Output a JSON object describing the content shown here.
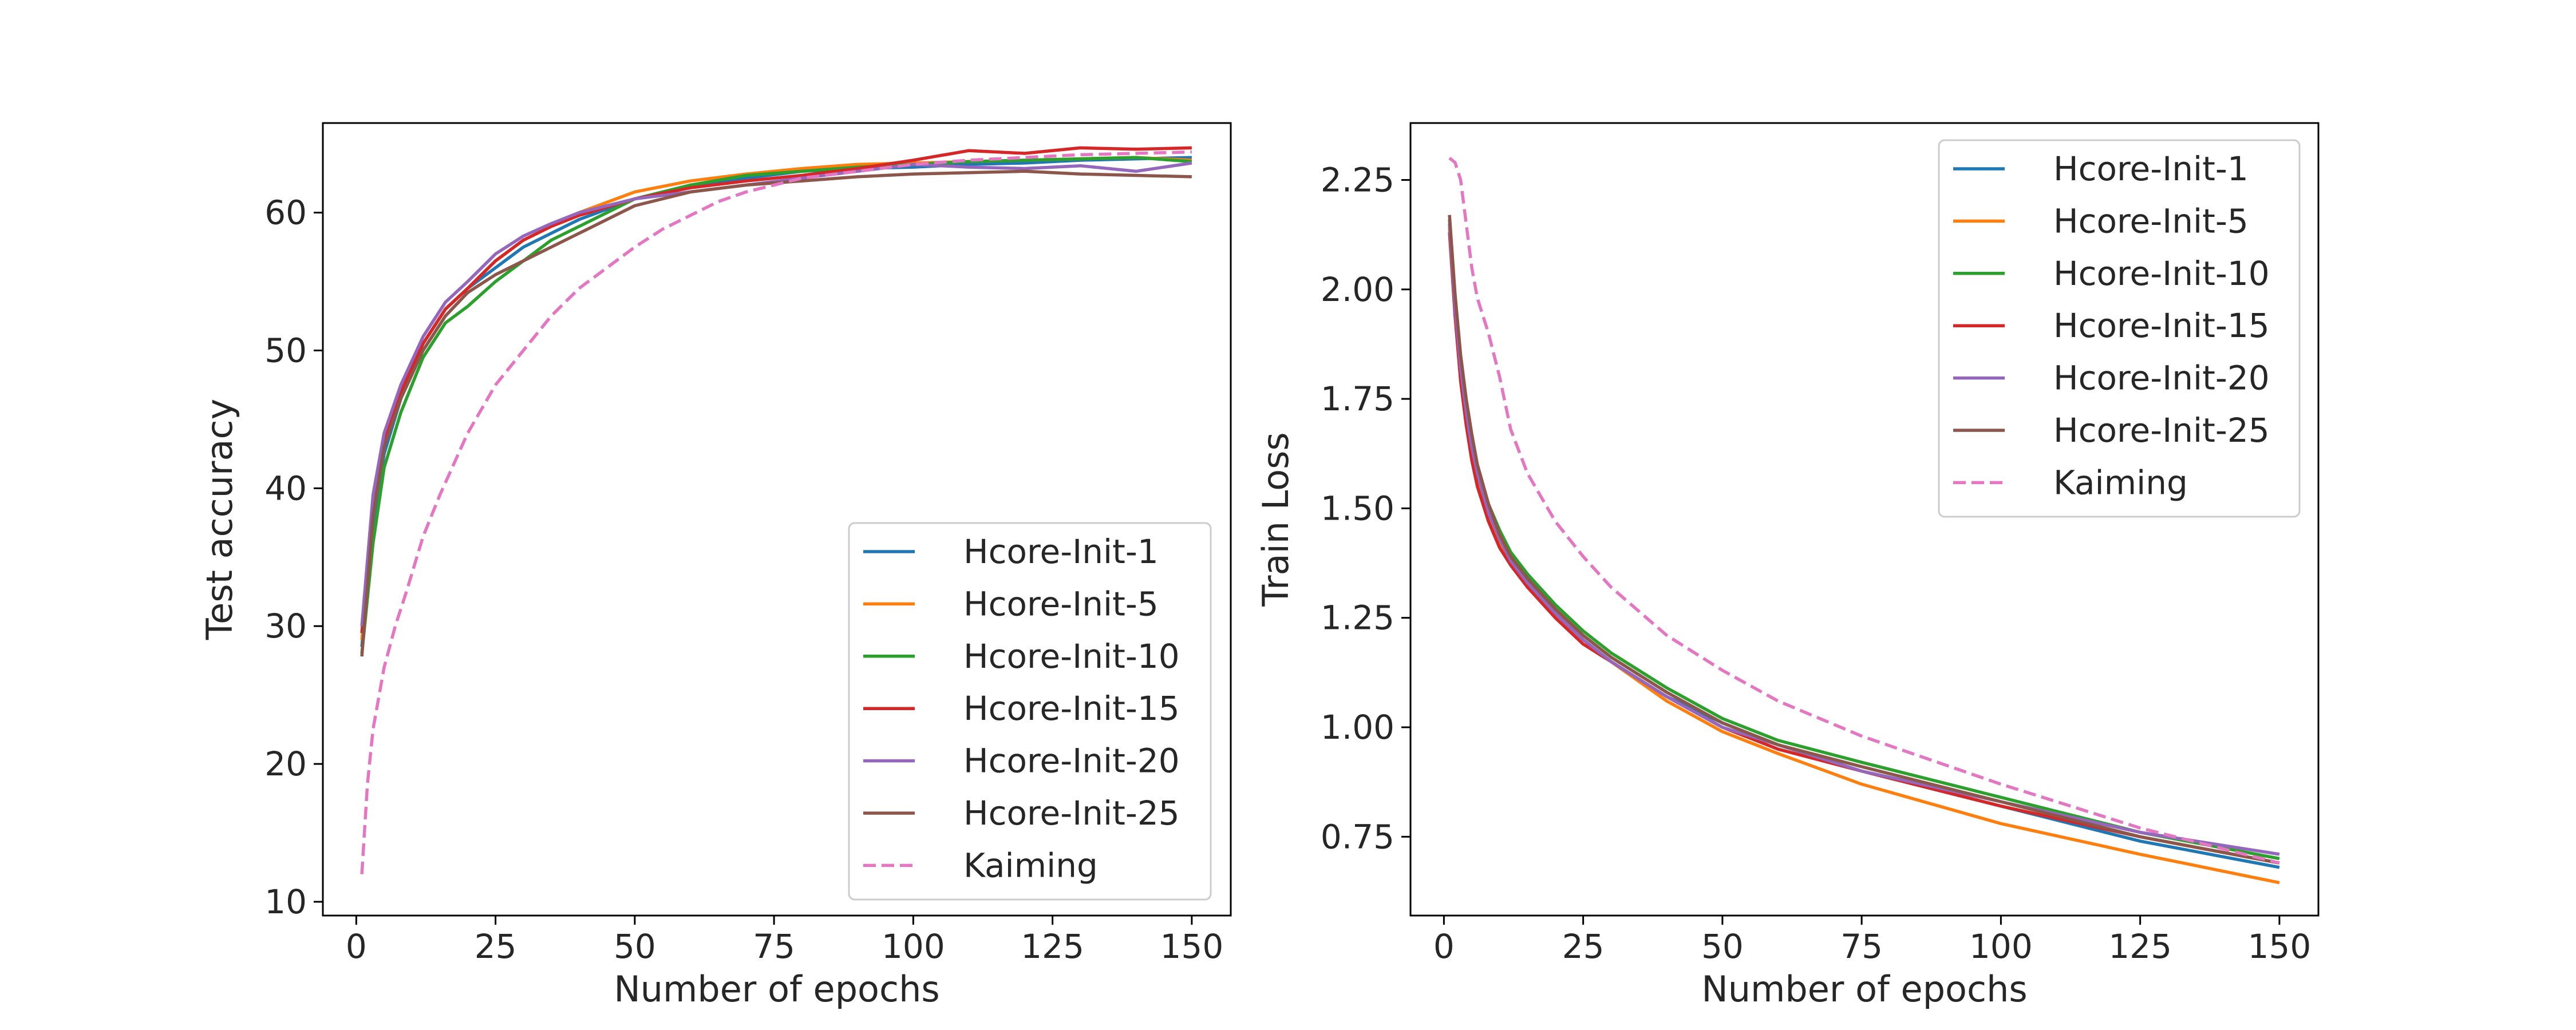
{
  "chart_data": [
    {
      "type": "line",
      "xlabel": "Number of epochs",
      "ylabel": "Test accuracy",
      "xlim": [
        -6,
        157
      ],
      "ylim": [
        9,
        66.5
      ],
      "xticks": [
        0,
        25,
        50,
        75,
        100,
        125,
        150
      ],
      "yticks": [
        10,
        20,
        30,
        40,
        50,
        60
      ],
      "legend_position": "lower-right",
      "series": [
        {
          "name": "Hcore-Init-1",
          "color": "#1f77b4",
          "dash": false,
          "x": [
            1,
            3,
            5,
            8,
            12,
            16,
            20,
            25,
            30,
            35,
            40,
            50,
            60,
            70,
            80,
            90,
            100,
            110,
            120,
            130,
            140,
            150
          ],
          "y": [
            28.5,
            37.5,
            42.5,
            46.5,
            50.5,
            53,
            54.5,
            56,
            57.5,
            58.5,
            59.5,
            61,
            62,
            62.5,
            63,
            63.2,
            63.3,
            63.5,
            63.6,
            63.8,
            63.9,
            64
          ]
        },
        {
          "name": "Hcore-Init-5",
          "color": "#ff7f0e",
          "dash": false,
          "x": [
            1,
            3,
            5,
            8,
            12,
            16,
            20,
            25,
            30,
            35,
            40,
            50,
            60,
            70,
            80,
            90,
            100,
            110,
            120,
            130,
            140,
            150
          ],
          "y": [
            29,
            38,
            43,
            47,
            50.5,
            53,
            54.5,
            56.5,
            58,
            59,
            60,
            61.5,
            62.3,
            62.8,
            63.2,
            63.5,
            63.6,
            63.7,
            63.8,
            63.9,
            64,
            63.8
          ]
        },
        {
          "name": "Hcore-Init-10",
          "color": "#2ca02c",
          "dash": false,
          "x": [
            1,
            3,
            5,
            8,
            12,
            16,
            20,
            25,
            30,
            35,
            40,
            50,
            60,
            70,
            80,
            90,
            100,
            110,
            120,
            130,
            140,
            150
          ],
          "y": [
            28,
            36,
            41.5,
            45.5,
            49.5,
            52,
            53.2,
            55,
            56.5,
            58,
            59,
            61,
            62,
            62.7,
            63,
            63.3,
            63.5,
            63.7,
            63.8,
            63.9,
            64,
            63.7
          ]
        },
        {
          "name": "Hcore-Init-15",
          "color": "#d62728",
          "dash": false,
          "x": [
            1,
            3,
            5,
            8,
            12,
            16,
            20,
            25,
            30,
            35,
            40,
            50,
            60,
            70,
            80,
            90,
            100,
            110,
            120,
            130,
            140,
            150
          ],
          "y": [
            29.5,
            39,
            43.5,
            47,
            50.5,
            53,
            54.5,
            56.5,
            58,
            59,
            59.8,
            61,
            61.8,
            62.3,
            62.7,
            63.2,
            63.8,
            64.5,
            64.3,
            64.7,
            64.6,
            64.7
          ]
        },
        {
          "name": "Hcore-Init-20",
          "color": "#9467bd",
          "dash": false,
          "x": [
            1,
            3,
            5,
            8,
            12,
            16,
            20,
            25,
            30,
            35,
            40,
            50,
            60,
            70,
            80,
            90,
            100,
            110,
            120,
            130,
            140,
            150
          ],
          "y": [
            30,
            39.5,
            44,
            47.5,
            51,
            53.5,
            55,
            57,
            58.3,
            59.2,
            60,
            61,
            61.5,
            62,
            62.5,
            63,
            63.5,
            63.3,
            63.2,
            63.4,
            63,
            63.6
          ]
        },
        {
          "name": "Hcore-Init-25",
          "color": "#8c564b",
          "dash": false,
          "x": [
            1,
            3,
            5,
            8,
            12,
            16,
            20,
            25,
            30,
            35,
            40,
            50,
            60,
            70,
            80,
            90,
            100,
            110,
            120,
            130,
            140,
            150
          ],
          "y": [
            27.8,
            38,
            43,
            46.5,
            50,
            52.5,
            54.2,
            55.5,
            56.5,
            57.5,
            58.5,
            60.5,
            61.5,
            62,
            62.3,
            62.6,
            62.8,
            62.9,
            63,
            62.8,
            62.7,
            62.6
          ]
        },
        {
          "name": "Kaiming",
          "color": "#e377c2",
          "dash": true,
          "x": [
            1,
            2,
            3,
            5,
            7,
            9,
            12,
            15,
            20,
            25,
            30,
            35,
            40,
            45,
            50,
            55,
            60,
            65,
            70,
            75,
            80,
            90,
            100,
            110,
            120,
            130,
            140,
            150
          ],
          "y": [
            12,
            18.5,
            22.5,
            27,
            30,
            32.5,
            36.5,
            39.5,
            44,
            47.5,
            50,
            52.5,
            54.5,
            56,
            57.5,
            58.8,
            59.8,
            60.8,
            61.5,
            62,
            62.5,
            63,
            63.5,
            63.8,
            64,
            64.2,
            64.3,
            64.4
          ]
        }
      ]
    },
    {
      "type": "line",
      "xlabel": "Number of epochs",
      "ylabel": "Train Loss",
      "xlim": [
        -6,
        157
      ],
      "ylim": [
        0.57,
        2.38
      ],
      "xticks": [
        0,
        25,
        50,
        75,
        100,
        125,
        150
      ],
      "yticks": [
        "0.75",
        "1.00",
        "1.25",
        "1.50",
        "1.75",
        "2.00",
        "2.25"
      ],
      "legend_position": "upper-right",
      "series": [
        {
          "name": "Hcore-Init-1",
          "color": "#1f77b4",
          "dash": false,
          "x": [
            1,
            2,
            3,
            4,
            5,
            6,
            8,
            10,
            12,
            15,
            20,
            25,
            30,
            40,
            50,
            60,
            75,
            100,
            125,
            150
          ],
          "y": [
            2.15,
            1.95,
            1.8,
            1.7,
            1.62,
            1.56,
            1.48,
            1.42,
            1.38,
            1.33,
            1.26,
            1.2,
            1.15,
            1.07,
            1.01,
            0.96,
            0.9,
            0.82,
            0.74,
            0.68
          ]
        },
        {
          "name": "Hcore-Init-5",
          "color": "#ff7f0e",
          "dash": false,
          "x": [
            1,
            2,
            3,
            4,
            5,
            6,
            8,
            10,
            12,
            15,
            20,
            25,
            30,
            40,
            50,
            60,
            75,
            100,
            125,
            150
          ],
          "y": [
            2.14,
            1.95,
            1.81,
            1.71,
            1.63,
            1.57,
            1.48,
            1.42,
            1.38,
            1.33,
            1.26,
            1.2,
            1.15,
            1.06,
            0.99,
            0.94,
            0.87,
            0.78,
            0.71,
            0.645
          ]
        },
        {
          "name": "Hcore-Init-10",
          "color": "#2ca02c",
          "dash": false,
          "x": [
            1,
            2,
            3,
            4,
            5,
            6,
            8,
            10,
            12,
            15,
            20,
            25,
            30,
            40,
            50,
            60,
            75,
            100,
            125,
            150
          ],
          "y": [
            2.16,
            1.98,
            1.84,
            1.74,
            1.66,
            1.6,
            1.51,
            1.45,
            1.4,
            1.35,
            1.28,
            1.22,
            1.17,
            1.09,
            1.02,
            0.97,
            0.92,
            0.84,
            0.76,
            0.7
          ]
        },
        {
          "name": "Hcore-Init-15",
          "color": "#d62728",
          "dash": false,
          "x": [
            1,
            2,
            3,
            4,
            5,
            6,
            8,
            10,
            12,
            15,
            20,
            25,
            30,
            40,
            50,
            60,
            75,
            100,
            125,
            150
          ],
          "y": [
            2.13,
            1.94,
            1.79,
            1.69,
            1.61,
            1.55,
            1.47,
            1.41,
            1.37,
            1.32,
            1.25,
            1.19,
            1.15,
            1.07,
            1.0,
            0.95,
            0.9,
            0.82,
            0.75,
            0.69
          ]
        },
        {
          "name": "Hcore-Init-20",
          "color": "#9467bd",
          "dash": false,
          "x": [
            1,
            2,
            3,
            4,
            5,
            6,
            8,
            10,
            12,
            15,
            20,
            25,
            30,
            40,
            50,
            60,
            75,
            100,
            125,
            150
          ],
          "y": [
            2.15,
            1.96,
            1.82,
            1.72,
            1.64,
            1.58,
            1.49,
            1.43,
            1.38,
            1.33,
            1.26,
            1.2,
            1.15,
            1.07,
            1.0,
            0.96,
            0.9,
            0.83,
            0.76,
            0.71
          ]
        },
        {
          "name": "Hcore-Init-25",
          "color": "#8c564b",
          "dash": false,
          "x": [
            1,
            2,
            3,
            4,
            5,
            6,
            8,
            10,
            12,
            15,
            20,
            25,
            30,
            40,
            50,
            60,
            75,
            100,
            125,
            150
          ],
          "y": [
            2.17,
            1.99,
            1.85,
            1.75,
            1.67,
            1.6,
            1.51,
            1.44,
            1.39,
            1.34,
            1.27,
            1.21,
            1.16,
            1.08,
            1.01,
            0.96,
            0.91,
            0.83,
            0.75,
            0.69
          ]
        },
        {
          "name": "Kaiming",
          "color": "#e377c2",
          "dash": true,
          "x": [
            1,
            2,
            3,
            4,
            5,
            6,
            8,
            10,
            12,
            15,
            20,
            25,
            30,
            40,
            50,
            60,
            75,
            100,
            125,
            150
          ],
          "y": [
            2.3,
            2.29,
            2.25,
            2.15,
            2.05,
            1.98,
            1.9,
            1.8,
            1.68,
            1.58,
            1.47,
            1.39,
            1.32,
            1.21,
            1.13,
            1.06,
            0.98,
            0.87,
            0.77,
            0.69
          ]
        }
      ]
    }
  ]
}
